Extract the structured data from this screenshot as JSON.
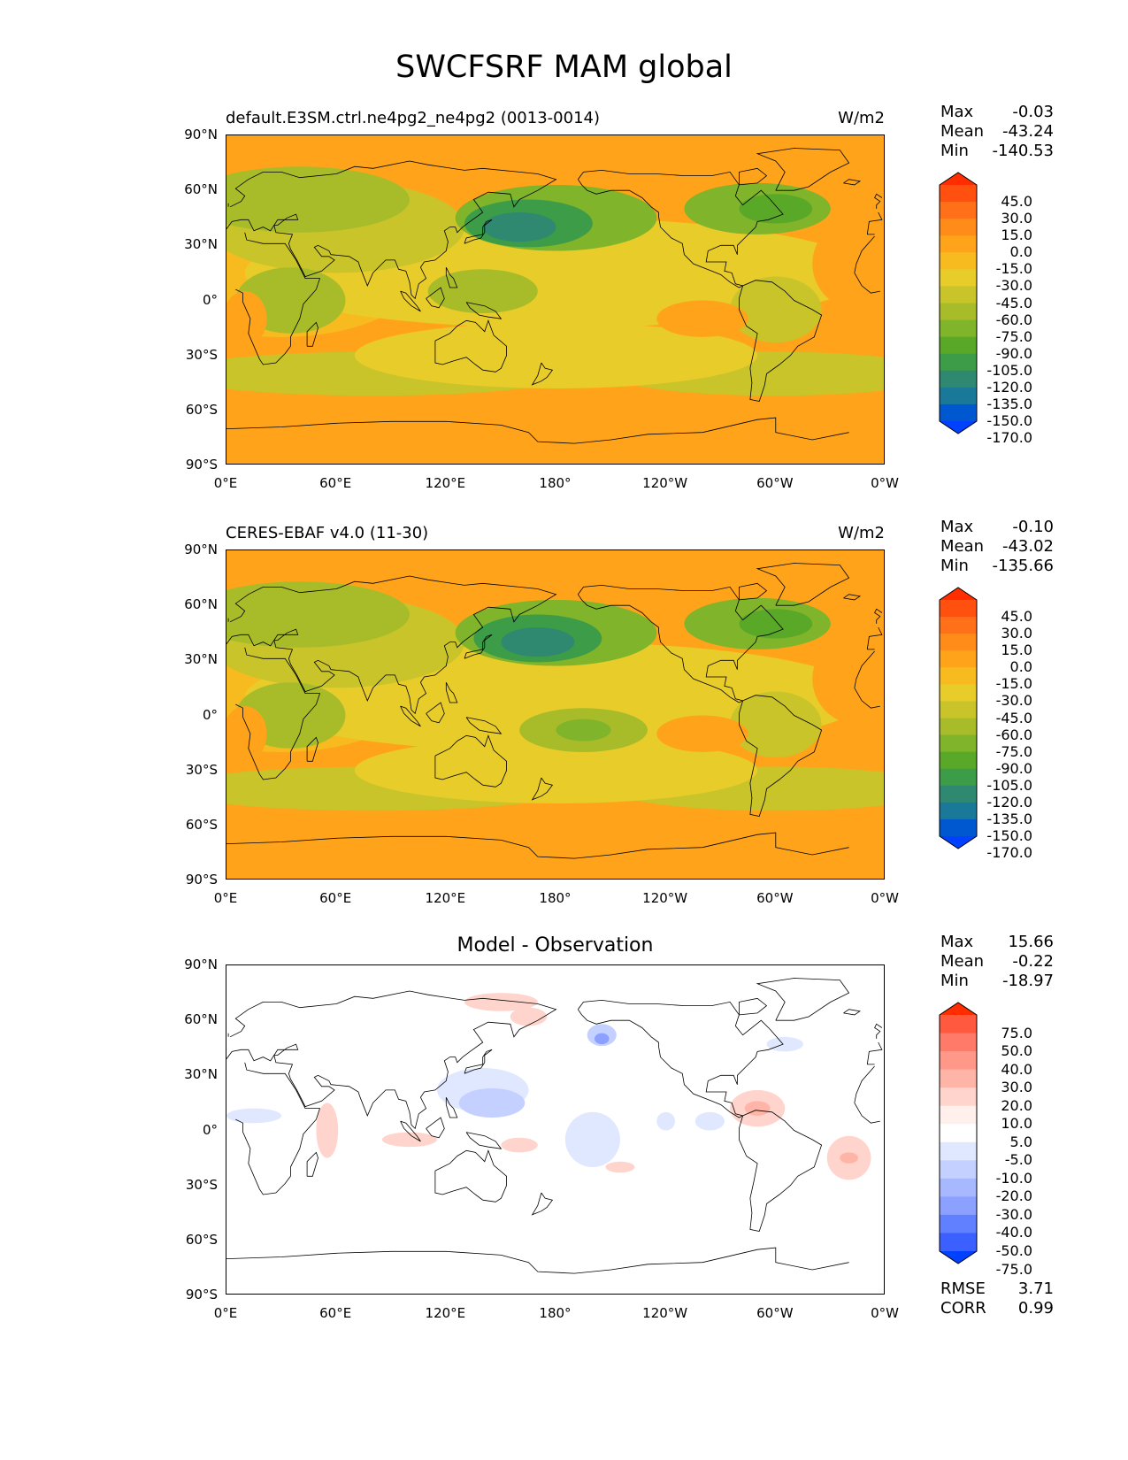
{
  "title": "SWCFSRF MAM global",
  "lat_ticks": [
    "90°N",
    "60°N",
    "30°N",
    "0°",
    "30°S",
    "60°S",
    "90°S"
  ],
  "lon_ticks": [
    "0°E",
    "60°E",
    "120°E",
    "180°",
    "120°W",
    "60°W",
    "0°W"
  ],
  "panels": [
    {
      "id": "model",
      "title_left": "default.E3SM.ctrl.ne4pg2_ne4pg2 (0013-0014)",
      "title_center": "",
      "units": "W/m2",
      "stats": {
        "max_label": "Max",
        "max": "-0.03",
        "mean_label": "Mean",
        "mean": "-43.24",
        "min_label": "Min",
        "min": "-140.53"
      },
      "colorbar_levels": [
        "45.0",
        "30.0",
        "15.0",
        "0.0",
        "-15.0",
        "-30.0",
        "-45.0",
        "-60.0",
        "-75.0",
        "-90.0",
        "-105.0",
        "-120.0",
        "-135.0",
        "-150.0",
        "-170.0"
      ],
      "colorbar_colors": [
        "#ff2d00",
        "#ff5010",
        "#ff7018",
        "#ff8c18",
        "#ffa41a",
        "#f7bb20",
        "#e8cc2a",
        "#c8c42a",
        "#a8bc2a",
        "#80b42a",
        "#5aa828",
        "#3c9c48",
        "#2f8870",
        "#1a7898",
        "#0058d0",
        "#0040ff"
      ],
      "fields": {
        "background": "#ffa41a",
        "blobs": [
          {
            "lon": 30,
            "lat": 20,
            "rx": 80,
            "ry": 40,
            "color": "#f7bb20"
          },
          {
            "lon": 180,
            "lat": 15,
            "rx": 170,
            "ry": 30,
            "color": "#e8cc2a"
          },
          {
            "lon": 60,
            "lat": 40,
            "rx": 70,
            "ry": 25,
            "color": "#c8c42a"
          },
          {
            "lon": 40,
            "lat": 55,
            "rx": 60,
            "ry": 18,
            "color": "#a8bc2a"
          },
          {
            "lon": 80,
            "lat": -40,
            "rx": 110,
            "ry": 12,
            "color": "#c8c42a"
          },
          {
            "lon": 300,
            "lat": -40,
            "rx": 90,
            "ry": 12,
            "color": "#c8c42a"
          },
          {
            "lon": 180,
            "lat": -30,
            "rx": 110,
            "ry": 18,
            "color": "#e8cc2a"
          },
          {
            "lon": 180,
            "lat": 45,
            "rx": 55,
            "ry": 18,
            "color": "#80b42a"
          },
          {
            "lon": 165,
            "lat": 42,
            "rx": 35,
            "ry": 13,
            "color": "#3c9c48"
          },
          {
            "lon": 160,
            "lat": 40,
            "rx": 20,
            "ry": 8,
            "color": "#2f8870"
          },
          {
            "lon": 290,
            "lat": 50,
            "rx": 40,
            "ry": 14,
            "color": "#80b42a"
          },
          {
            "lon": 300,
            "lat": 50,
            "rx": 20,
            "ry": 8,
            "color": "#5aa828"
          },
          {
            "lon": 35,
            "lat": 0,
            "rx": 30,
            "ry": 18,
            "color": "#a8bc2a"
          },
          {
            "lon": 140,
            "lat": 5,
            "rx": 30,
            "ry": 12,
            "color": "#a8bc2a"
          },
          {
            "lon": 300,
            "lat": -5,
            "rx": 25,
            "ry": 18,
            "color": "#c8c42a"
          },
          {
            "lon": 260,
            "lat": -10,
            "rx": 25,
            "ry": 10,
            "color": "#ffa41a"
          },
          {
            "lon": 10,
            "lat": -10,
            "rx": 12,
            "ry": 15,
            "color": "#ffa41a"
          },
          {
            "lon": 345,
            "lat": 20,
            "rx": 25,
            "ry": 25,
            "color": "#ffa41a"
          }
        ]
      }
    },
    {
      "id": "observation",
      "title_left": "CERES-EBAF v4.0 (11-30)",
      "title_center": "",
      "units": "W/m2",
      "stats": {
        "max_label": "Max",
        "max": "-0.10",
        "mean_label": "Mean",
        "mean": "-43.02",
        "min_label": "Min",
        "min": "-135.66"
      },
      "colorbar_levels": [
        "45.0",
        "30.0",
        "15.0",
        "0.0",
        "-15.0",
        "-30.0",
        "-45.0",
        "-60.0",
        "-75.0",
        "-90.0",
        "-105.0",
        "-120.0",
        "-135.0",
        "-150.0",
        "-170.0"
      ],
      "colorbar_colors": [
        "#ff2d00",
        "#ff5010",
        "#ff7018",
        "#ff8c18",
        "#ffa41a",
        "#f7bb20",
        "#e8cc2a",
        "#c8c42a",
        "#a8bc2a",
        "#80b42a",
        "#5aa828",
        "#3c9c48",
        "#2f8870",
        "#1a7898",
        "#0058d0",
        "#0040ff"
      ],
      "fields": {
        "background": "#ffa41a",
        "blobs": [
          {
            "lon": 30,
            "lat": 20,
            "rx": 80,
            "ry": 40,
            "color": "#f7bb20"
          },
          {
            "lon": 180,
            "lat": 10,
            "rx": 170,
            "ry": 30,
            "color": "#e8cc2a"
          },
          {
            "lon": 60,
            "lat": 40,
            "rx": 70,
            "ry": 25,
            "color": "#c8c42a"
          },
          {
            "lon": 40,
            "lat": 55,
            "rx": 60,
            "ry": 18,
            "color": "#a8bc2a"
          },
          {
            "lon": 80,
            "lat": -40,
            "rx": 110,
            "ry": 12,
            "color": "#c8c42a"
          },
          {
            "lon": 300,
            "lat": -40,
            "rx": 90,
            "ry": 12,
            "color": "#c8c42a"
          },
          {
            "lon": 180,
            "lat": -30,
            "rx": 110,
            "ry": 18,
            "color": "#e8cc2a"
          },
          {
            "lon": 180,
            "lat": 45,
            "rx": 55,
            "ry": 18,
            "color": "#80b42a"
          },
          {
            "lon": 170,
            "lat": 42,
            "rx": 35,
            "ry": 13,
            "color": "#3c9c48"
          },
          {
            "lon": 170,
            "lat": 40,
            "rx": 20,
            "ry": 8,
            "color": "#2f8870"
          },
          {
            "lon": 290,
            "lat": 50,
            "rx": 40,
            "ry": 14,
            "color": "#80b42a"
          },
          {
            "lon": 300,
            "lat": 50,
            "rx": 20,
            "ry": 8,
            "color": "#5aa828"
          },
          {
            "lon": 35,
            "lat": 0,
            "rx": 30,
            "ry": 18,
            "color": "#a8bc2a"
          },
          {
            "lon": 195,
            "lat": -8,
            "rx": 35,
            "ry": 12,
            "color": "#a8bc2a"
          },
          {
            "lon": 195,
            "lat": -8,
            "rx": 15,
            "ry": 6,
            "color": "#80b42a"
          },
          {
            "lon": 300,
            "lat": -5,
            "rx": 25,
            "ry": 18,
            "color": "#c8c42a"
          },
          {
            "lon": 260,
            "lat": -10,
            "rx": 25,
            "ry": 10,
            "color": "#ffa41a"
          },
          {
            "lon": 10,
            "lat": -10,
            "rx": 12,
            "ry": 15,
            "color": "#ffa41a"
          },
          {
            "lon": 345,
            "lat": 20,
            "rx": 25,
            "ry": 25,
            "color": "#ffa41a"
          }
        ]
      }
    },
    {
      "id": "difference",
      "title_left": "",
      "title_center": "Model - Observation",
      "units": "",
      "stats": {
        "max_label": "Max",
        "max": "15.66",
        "mean_label": "Mean",
        "mean": "-0.22",
        "min_label": "Min",
        "min": "-18.97"
      },
      "colorbar_levels": [
        "75.0",
        "50.0",
        "40.0",
        "30.0",
        "20.0",
        "10.0",
        "5.0",
        "-5.0",
        "-10.0",
        "-20.0",
        "-30.0",
        "-40.0",
        "-50.0",
        "-75.0"
      ],
      "colorbar_colors": [
        "#ff2d00",
        "#ff5a40",
        "#ff7a68",
        "#ff9888",
        "#ffb4a8",
        "#ffd4cc",
        "#fff0ec",
        "#ffffff",
        "#e0e8ff",
        "#c4d0ff",
        "#a8b8ff",
        "#8ca0ff",
        "#6080ff",
        "#3c60ff",
        "#0040ff"
      ],
      "fields": {
        "background": "#ffffff",
        "blobs": [
          {
            "lon": 150,
            "lat": 70,
            "rx": 20,
            "ry": 5,
            "color": "#ffd4cc"
          },
          {
            "lon": 165,
            "lat": 62,
            "rx": 10,
            "ry": 5,
            "color": "#ffd4cc"
          },
          {
            "lon": 205,
            "lat": 52,
            "rx": 8,
            "ry": 6,
            "color": "#c4d0ff"
          },
          {
            "lon": 205,
            "lat": 50,
            "rx": 4,
            "ry": 3,
            "color": "#8ca0ff"
          },
          {
            "lon": 140,
            "lat": 22,
            "rx": 25,
            "ry": 12,
            "color": "#e0e8ff"
          },
          {
            "lon": 145,
            "lat": 15,
            "rx": 18,
            "ry": 8,
            "color": "#c4d0ff"
          },
          {
            "lon": 200,
            "lat": -5,
            "rx": 15,
            "ry": 15,
            "color": "#e0e8ff"
          },
          {
            "lon": 240,
            "lat": 5,
            "rx": 5,
            "ry": 5,
            "color": "#e0e8ff"
          },
          {
            "lon": 290,
            "lat": 12,
            "rx": 15,
            "ry": 10,
            "color": "#ffd4cc"
          },
          {
            "lon": 290,
            "lat": 12,
            "rx": 7,
            "ry": 4,
            "color": "#ffb4a8"
          },
          {
            "lon": 340,
            "lat": -15,
            "rx": 12,
            "ry": 12,
            "color": "#ffd4cc"
          },
          {
            "lon": 340,
            "lat": -15,
            "rx": 5,
            "ry": 3,
            "color": "#ffb4a8"
          },
          {
            "lon": 100,
            "lat": -5,
            "rx": 15,
            "ry": 4,
            "color": "#ffd4cc"
          },
          {
            "lon": 55,
            "lat": 0,
            "rx": 6,
            "ry": 15,
            "color": "#ffd4cc"
          },
          {
            "lon": 15,
            "lat": 8,
            "rx": 15,
            "ry": 4,
            "color": "#e0e8ff"
          },
          {
            "lon": 160,
            "lat": -8,
            "rx": 10,
            "ry": 4,
            "color": "#ffd4cc"
          },
          {
            "lon": 305,
            "lat": 47,
            "rx": 10,
            "ry": 4,
            "color": "#e0e8ff"
          },
          {
            "lon": 215,
            "lat": -20,
            "rx": 8,
            "ry": 3,
            "color": "#ffd4cc"
          },
          {
            "lon": 264,
            "lat": 5,
            "rx": 8,
            "ry": 5,
            "color": "#e0e8ff"
          }
        ]
      },
      "metrics": {
        "rmse_label": "RMSE",
        "rmse": "3.71",
        "corr_label": "CORR",
        "corr": "0.99"
      }
    }
  ]
}
